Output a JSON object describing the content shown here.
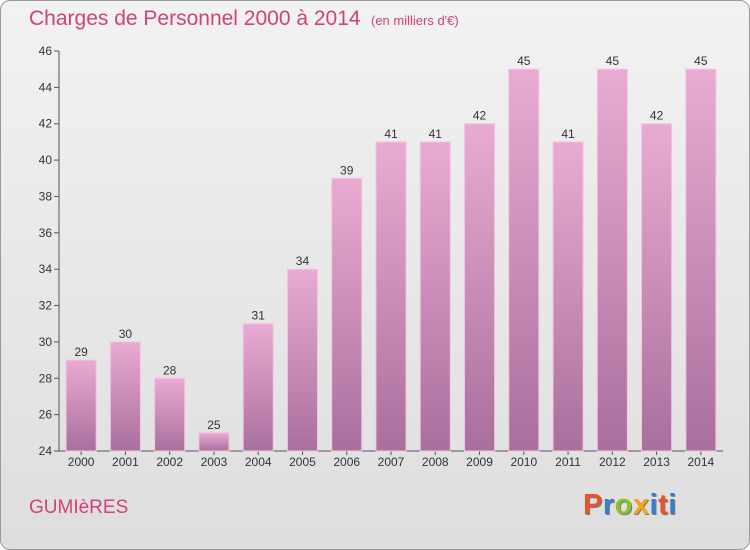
{
  "header": {
    "title": "Charges de Personnel 2000 à 2014",
    "unit": "(en milliers d'€)"
  },
  "footer": {
    "place": "GUMIèRES",
    "brand": "Proxiti"
  },
  "colors": {
    "title": "#d0427a",
    "bar_top": "#e9abd2",
    "bar_bottom": "#a96f9d",
    "brand_letters": [
      "#e8542a",
      "#3a7ec8",
      "#8bbf2c",
      "#f2a51a",
      "#3a7ec8",
      "#e8542a",
      "#3a7ec8"
    ]
  },
  "chart_data": {
    "type": "bar",
    "title": "Charges de Personnel 2000 à 2014",
    "subtitle": "(en milliers d'€)",
    "categories": [
      "2000",
      "2001",
      "2002",
      "2003",
      "2004",
      "2005",
      "2006",
      "2007",
      "2008",
      "2009",
      "2010",
      "2011",
      "2012",
      "2013",
      "2014"
    ],
    "values": [
      29,
      30,
      28,
      25,
      31,
      34,
      39,
      41,
      41,
      42,
      45,
      41,
      45,
      42,
      45
    ],
    "ylim": [
      24,
      46
    ],
    "yticks": [
      24,
      26,
      28,
      30,
      32,
      34,
      36,
      38,
      40,
      42,
      44,
      46
    ],
    "grid": false,
    "data_labels": true
  }
}
